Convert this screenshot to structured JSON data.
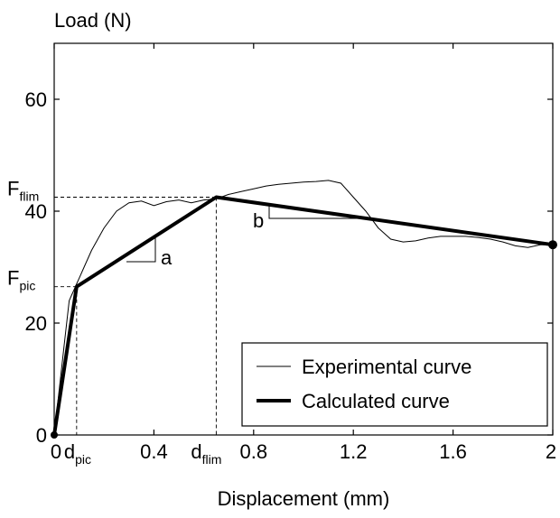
{
  "chart_data": {
    "type": "line",
    "title": "",
    "xlabel": "Displacement (mm)",
    "ylabel": "Load (N)",
    "xlim": [
      0,
      2
    ],
    "ylim": [
      0,
      70
    ],
    "grid": false,
    "legend_placement": "bottom-right",
    "x_ticks": [
      "0",
      "0.4",
      "0.8",
      "1.2",
      "1.6",
      "2"
    ],
    "x_tick_values": [
      0,
      0.4,
      0.8,
      1.2,
      1.6,
      2
    ],
    "y_ticks": [
      "0",
      "20",
      "40",
      "60"
    ],
    "y_tick_values": [
      0,
      20,
      40,
      60
    ],
    "series": [
      {
        "name": "Experimental curve",
        "style": "thin",
        "x": [
          0,
          0.02,
          0.04,
          0.06,
          0.07,
          0.08,
          0.09,
          0.1,
          0.12,
          0.15,
          0.2,
          0.25,
          0.3,
          0.35,
          0.4,
          0.45,
          0.5,
          0.55,
          0.6,
          0.65,
          0.7,
          0.75,
          0.8,
          0.85,
          0.9,
          0.95,
          1.0,
          1.05,
          1.1,
          1.15,
          1.2,
          1.25,
          1.3,
          1.35,
          1.4,
          1.45,
          1.5,
          1.55,
          1.6,
          1.65,
          1.7,
          1.75,
          1.8,
          1.85,
          1.9,
          1.95,
          2.0
        ],
        "y": [
          0,
          8,
          16,
          24,
          25,
          26,
          27,
          28,
          30,
          33,
          37,
          40,
          41.5,
          41.8,
          41,
          41.7,
          42,
          41.5,
          42,
          42.2,
          43,
          43.5,
          44,
          44.5,
          44.8,
          45,
          45.2,
          45.3,
          45.5,
          45,
          42.5,
          40,
          37,
          35,
          34.5,
          34.7,
          35.2,
          35.5,
          35.5,
          35.5,
          35.3,
          35,
          34.5,
          33.8,
          33.5,
          34,
          34
        ]
      },
      {
        "name": "Calculated curve",
        "style": "thick",
        "x": [
          0,
          0.09,
          0.65,
          2.0
        ],
        "y": [
          0,
          26.5,
          42.5,
          34
        ]
      }
    ],
    "annotations": {
      "F_flim_main": "F",
      "F_flim_sub": "flim",
      "F_pic_main": "F",
      "F_pic_sub": "pic",
      "d_pic_main": "d",
      "d_pic_sub": "pic",
      "d_flim_main": "d",
      "d_flim_sub": "flim",
      "slope_a": "a",
      "slope_b": "b"
    },
    "key_points": {
      "d_pic": 0.09,
      "F_pic": 26.5,
      "d_flim": 0.65,
      "F_flim": 42.5
    }
  }
}
